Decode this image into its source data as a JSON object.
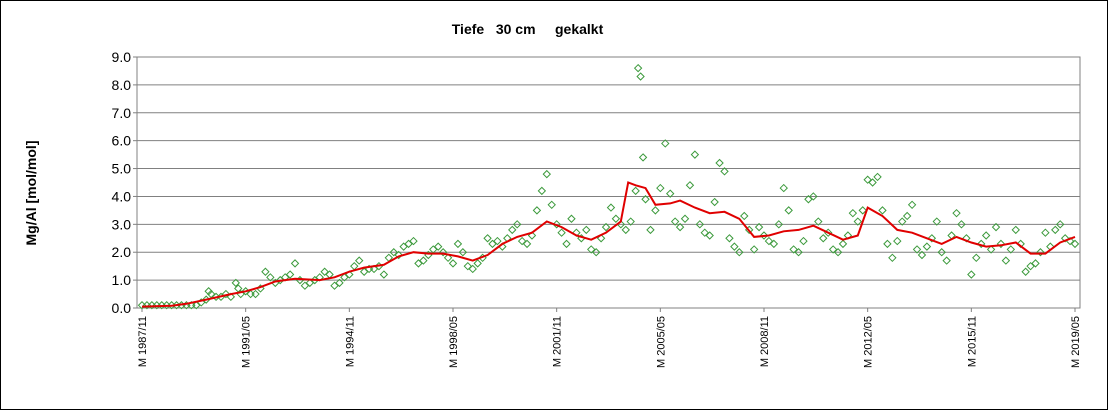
{
  "chart_data": {
    "type": "scatter",
    "title": "Tiefe   30 cm     gekalkt",
    "ylabel": "Mg/Al [mol/mol]",
    "xlabel": "",
    "ylim": [
      0,
      9
    ],
    "yticks": [
      "0.0",
      "1.0",
      "2.0",
      "3.0",
      "4.0",
      "5.0",
      "6.0",
      "7.0",
      "8.0",
      "9.0"
    ],
    "xlim": [
      "1987-11",
      "2019-05"
    ],
    "xticks": [
      {
        "label": "M 1987/11",
        "date": "1987-11"
      },
      {
        "label": "M 1991/05",
        "date": "1991-05"
      },
      {
        "label": "M 1994/11",
        "date": "1994-11"
      },
      {
        "label": "M 1998/05",
        "date": "1998-05"
      },
      {
        "label": "M 2001/11",
        "date": "2001-11"
      },
      {
        "label": "M 2005/05",
        "date": "2005-05"
      },
      {
        "label": "M 2008/11",
        "date": "2008-11"
      },
      {
        "label": "M 2012/05",
        "date": "2012-05"
      },
      {
        "label": "M 2015/11",
        "date": "2015-11"
      },
      {
        "label": "M 2019/05",
        "date": "2019-05"
      }
    ],
    "grid": "horizontal",
    "background": "#ffffff",
    "series": [
      {
        "kind": "scatter",
        "marker": "diamond-open",
        "color": "#3c9a3c",
        "points": [
          [
            "1987-11",
            0.1
          ],
          [
            "1988-01",
            0.1
          ],
          [
            "1988-03",
            0.1
          ],
          [
            "1988-05",
            0.1
          ],
          [
            "1988-07",
            0.1
          ],
          [
            "1988-09",
            0.1
          ],
          [
            "1988-11",
            0.1
          ],
          [
            "1989-01",
            0.1
          ],
          [
            "1989-03",
            0.1
          ],
          [
            "1989-05",
            0.1
          ],
          [
            "1989-07",
            0.1
          ],
          [
            "1989-09",
            0.1
          ],
          [
            "1989-11",
            0.2
          ],
          [
            "1990-01",
            0.3
          ],
          [
            "1990-02",
            0.6
          ],
          [
            "1990-03",
            0.5
          ],
          [
            "1990-05",
            0.4
          ],
          [
            "1990-07",
            0.4
          ],
          [
            "1990-09",
            0.5
          ],
          [
            "1990-11",
            0.4
          ],
          [
            "1991-01",
            0.9
          ],
          [
            "1991-02",
            0.7
          ],
          [
            "1991-03",
            0.5
          ],
          [
            "1991-05",
            0.6
          ],
          [
            "1991-07",
            0.5
          ],
          [
            "1991-09",
            0.5
          ],
          [
            "1991-11",
            0.7
          ],
          [
            "1992-01",
            1.3
          ],
          [
            "1992-03",
            1.1
          ],
          [
            "1992-05",
            0.9
          ],
          [
            "1992-07",
            1.0
          ],
          [
            "1992-09",
            1.1
          ],
          [
            "1992-11",
            1.2
          ],
          [
            "1993-01",
            1.6
          ],
          [
            "1993-03",
            1.0
          ],
          [
            "1993-05",
            0.8
          ],
          [
            "1993-07",
            0.9
          ],
          [
            "1993-09",
            1.0
          ],
          [
            "1993-11",
            1.1
          ],
          [
            "1994-01",
            1.3
          ],
          [
            "1994-03",
            1.2
          ],
          [
            "1994-05",
            0.8
          ],
          [
            "1994-07",
            0.9
          ],
          [
            "1994-09",
            1.1
          ],
          [
            "1994-11",
            1.2
          ],
          [
            "1995-01",
            1.5
          ],
          [
            "1995-03",
            1.7
          ],
          [
            "1995-05",
            1.3
          ],
          [
            "1995-07",
            1.4
          ],
          [
            "1995-09",
            1.4
          ],
          [
            "1995-11",
            1.5
          ],
          [
            "1996-01",
            1.2
          ],
          [
            "1996-03",
            1.8
          ],
          [
            "1996-05",
            2.0
          ],
          [
            "1996-07",
            1.9
          ],
          [
            "1996-09",
            2.2
          ],
          [
            "1996-11",
            2.3
          ],
          [
            "1997-01",
            2.4
          ],
          [
            "1997-03",
            1.6
          ],
          [
            "1997-05",
            1.7
          ],
          [
            "1997-07",
            1.9
          ],
          [
            "1997-09",
            2.1
          ],
          [
            "1997-11",
            2.2
          ],
          [
            "1998-01",
            2.0
          ],
          [
            "1998-03",
            1.8
          ],
          [
            "1998-05",
            1.6
          ],
          [
            "1998-07",
            2.3
          ],
          [
            "1998-09",
            2.0
          ],
          [
            "1998-11",
            1.5
          ],
          [
            "1999-01",
            1.4
          ],
          [
            "1999-03",
            1.6
          ],
          [
            "1999-05",
            1.8
          ],
          [
            "1999-07",
            2.5
          ],
          [
            "1999-09",
            2.3
          ],
          [
            "1999-11",
            2.4
          ],
          [
            "2000-01",
            2.2
          ],
          [
            "2000-03",
            2.5
          ],
          [
            "2000-05",
            2.8
          ],
          [
            "2000-07",
            3.0
          ],
          [
            "2000-09",
            2.4
          ],
          [
            "2000-11",
            2.3
          ],
          [
            "2001-01",
            2.6
          ],
          [
            "2001-03",
            3.5
          ],
          [
            "2001-05",
            4.2
          ],
          [
            "2001-07",
            4.8
          ],
          [
            "2001-09",
            3.7
          ],
          [
            "2001-11",
            3.0
          ],
          [
            "2002-01",
            2.7
          ],
          [
            "2002-03",
            2.3
          ],
          [
            "2002-05",
            3.2
          ],
          [
            "2002-07",
            2.7
          ],
          [
            "2002-09",
            2.5
          ],
          [
            "2002-11",
            2.8
          ],
          [
            "2003-01",
            2.1
          ],
          [
            "2003-03",
            2.0
          ],
          [
            "2003-05",
            2.5
          ],
          [
            "2003-07",
            2.9
          ],
          [
            "2003-09",
            3.6
          ],
          [
            "2003-11",
            3.2
          ],
          [
            "2004-01",
            3.0
          ],
          [
            "2004-03",
            2.8
          ],
          [
            "2004-05",
            3.1
          ],
          [
            "2004-07",
            4.2
          ],
          [
            "2004-08",
            8.6
          ],
          [
            "2004-09",
            8.3
          ],
          [
            "2004-10",
            5.4
          ],
          [
            "2004-11",
            3.9
          ],
          [
            "2005-01",
            2.8
          ],
          [
            "2005-03",
            3.5
          ],
          [
            "2005-05",
            4.3
          ],
          [
            "2005-07",
            5.9
          ],
          [
            "2005-09",
            4.1
          ],
          [
            "2005-11",
            3.1
          ],
          [
            "2006-01",
            2.9
          ],
          [
            "2006-03",
            3.2
          ],
          [
            "2006-05",
            4.4
          ],
          [
            "2006-07",
            5.5
          ],
          [
            "2006-09",
            3.0
          ],
          [
            "2006-11",
            2.7
          ],
          [
            "2007-01",
            2.6
          ],
          [
            "2007-03",
            3.8
          ],
          [
            "2007-05",
            5.2
          ],
          [
            "2007-07",
            4.9
          ],
          [
            "2007-09",
            2.5
          ],
          [
            "2007-11",
            2.2
          ],
          [
            "2008-01",
            2.0
          ],
          [
            "2008-03",
            3.3
          ],
          [
            "2008-05",
            2.8
          ],
          [
            "2008-07",
            2.1
          ],
          [
            "2008-09",
            2.9
          ],
          [
            "2008-11",
            2.6
          ],
          [
            "2009-01",
            2.4
          ],
          [
            "2009-03",
            2.3
          ],
          [
            "2009-05",
            3.0
          ],
          [
            "2009-07",
            4.3
          ],
          [
            "2009-09",
            3.5
          ],
          [
            "2009-11",
            2.1
          ],
          [
            "2010-01",
            2.0
          ],
          [
            "2010-03",
            2.4
          ],
          [
            "2010-05",
            3.9
          ],
          [
            "2010-07",
            4.0
          ],
          [
            "2010-09",
            3.1
          ],
          [
            "2010-11",
            2.5
          ],
          [
            "2011-01",
            2.7
          ],
          [
            "2011-03",
            2.1
          ],
          [
            "2011-05",
            2.0
          ],
          [
            "2011-07",
            2.3
          ],
          [
            "2011-09",
            2.6
          ],
          [
            "2011-11",
            3.4
          ],
          [
            "2012-01",
            3.1
          ],
          [
            "2012-03",
            3.5
          ],
          [
            "2012-05",
            4.6
          ],
          [
            "2012-07",
            4.5
          ],
          [
            "2012-09",
            4.7
          ],
          [
            "2012-11",
            3.5
          ],
          [
            "2013-01",
            2.3
          ],
          [
            "2013-03",
            1.8
          ],
          [
            "2013-05",
            2.4
          ],
          [
            "2013-07",
            3.1
          ],
          [
            "2013-09",
            3.3
          ],
          [
            "2013-11",
            3.7
          ],
          [
            "2014-01",
            2.1
          ],
          [
            "2014-03",
            1.9
          ],
          [
            "2014-05",
            2.2
          ],
          [
            "2014-07",
            2.5
          ],
          [
            "2014-09",
            3.1
          ],
          [
            "2014-11",
            2.0
          ],
          [
            "2015-01",
            1.7
          ],
          [
            "2015-03",
            2.6
          ],
          [
            "2015-05",
            3.4
          ],
          [
            "2015-07",
            3.0
          ],
          [
            "2015-09",
            2.5
          ],
          [
            "2015-11",
            1.2
          ],
          [
            "2016-01",
            1.8
          ],
          [
            "2016-03",
            2.3
          ],
          [
            "2016-05",
            2.6
          ],
          [
            "2016-07",
            2.1
          ],
          [
            "2016-09",
            2.9
          ],
          [
            "2016-11",
            2.3
          ],
          [
            "2017-01",
            1.7
          ],
          [
            "2017-03",
            2.1
          ],
          [
            "2017-05",
            2.8
          ],
          [
            "2017-07",
            2.3
          ],
          [
            "2017-09",
            1.3
          ],
          [
            "2017-11",
            1.5
          ],
          [
            "2018-01",
            1.6
          ],
          [
            "2018-03",
            2.0
          ],
          [
            "2018-05",
            2.7
          ],
          [
            "2018-07",
            2.2
          ],
          [
            "2018-09",
            2.8
          ],
          [
            "2018-11",
            3.0
          ],
          [
            "2019-01",
            2.5
          ],
          [
            "2019-03",
            2.4
          ],
          [
            "2019-05",
            2.3
          ]
        ]
      },
      {
        "kind": "line",
        "color": "#e00000",
        "points": [
          [
            "1987-11",
            0.05
          ],
          [
            "1988-11",
            0.08
          ],
          [
            "1989-05",
            0.15
          ],
          [
            "1990-01",
            0.3
          ],
          [
            "1990-11",
            0.5
          ],
          [
            "1991-05",
            0.6
          ],
          [
            "1991-11",
            0.75
          ],
          [
            "1992-05",
            0.95
          ],
          [
            "1993-01",
            1.05
          ],
          [
            "1993-11",
            1.0
          ],
          [
            "1994-05",
            1.1
          ],
          [
            "1994-11",
            1.3
          ],
          [
            "1995-05",
            1.45
          ],
          [
            "1996-01",
            1.55
          ],
          [
            "1996-07",
            1.85
          ],
          [
            "1997-01",
            2.0
          ],
          [
            "1997-07",
            1.95
          ],
          [
            "1998-01",
            1.95
          ],
          [
            "1998-07",
            1.85
          ],
          [
            "1999-01",
            1.7
          ],
          [
            "1999-07",
            1.9
          ],
          [
            "2000-01",
            2.3
          ],
          [
            "2000-07",
            2.55
          ],
          [
            "2001-01",
            2.7
          ],
          [
            "2001-07",
            3.1
          ],
          [
            "2002-01",
            2.9
          ],
          [
            "2002-07",
            2.6
          ],
          [
            "2003-01",
            2.45
          ],
          [
            "2003-07",
            2.7
          ],
          [
            "2004-01",
            3.1
          ],
          [
            "2004-04",
            4.5
          ],
          [
            "2004-07",
            4.4
          ],
          [
            "2004-11",
            4.3
          ],
          [
            "2005-03",
            3.7
          ],
          [
            "2005-09",
            3.75
          ],
          [
            "2006-01",
            3.85
          ],
          [
            "2006-07",
            3.6
          ],
          [
            "2007-01",
            3.4
          ],
          [
            "2007-07",
            3.45
          ],
          [
            "2008-01",
            3.2
          ],
          [
            "2008-07",
            2.55
          ],
          [
            "2009-01",
            2.6
          ],
          [
            "2009-07",
            2.75
          ],
          [
            "2010-01",
            2.8
          ],
          [
            "2010-07",
            2.95
          ],
          [
            "2011-01",
            2.7
          ],
          [
            "2011-07",
            2.45
          ],
          [
            "2012-01",
            2.6
          ],
          [
            "2012-05",
            3.6
          ],
          [
            "2012-11",
            3.3
          ],
          [
            "2013-05",
            2.8
          ],
          [
            "2013-11",
            2.7
          ],
          [
            "2014-05",
            2.5
          ],
          [
            "2014-11",
            2.3
          ],
          [
            "2015-05",
            2.55
          ],
          [
            "2015-11",
            2.35
          ],
          [
            "2016-05",
            2.2
          ],
          [
            "2016-11",
            2.25
          ],
          [
            "2017-05",
            2.35
          ],
          [
            "2017-11",
            1.95
          ],
          [
            "2018-05",
            1.95
          ],
          [
            "2018-11",
            2.35
          ],
          [
            "2019-05",
            2.55
          ]
        ]
      }
    ]
  }
}
